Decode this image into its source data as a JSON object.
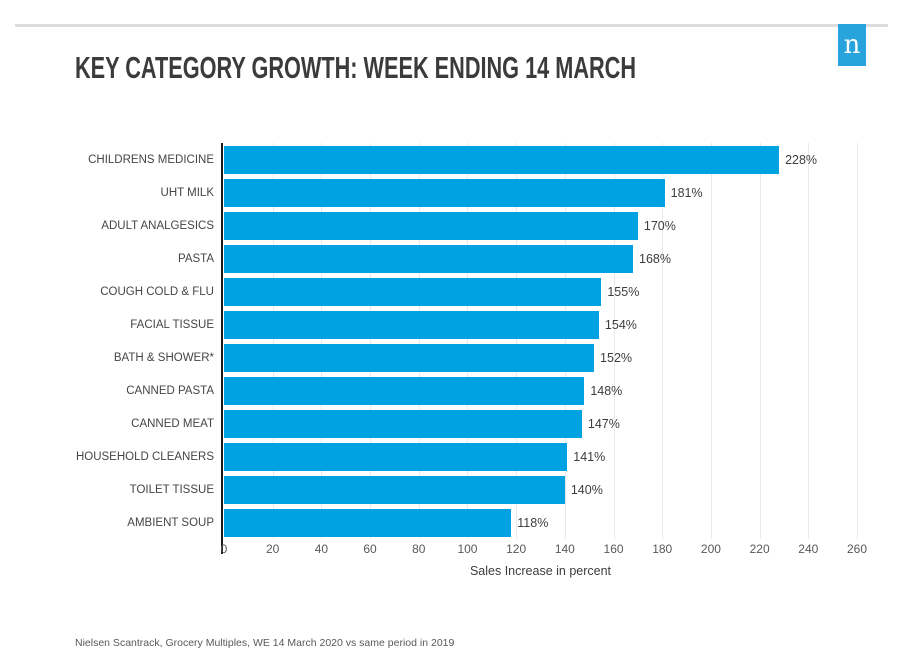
{
  "logo": {
    "letter": "n",
    "color": "#29a3db"
  },
  "title": "KEY CATEGORY GROWTH: WEEK ENDING 14 MARCH",
  "footer": "Nielsen Scantrack, Grocery Multiples, WE 14 March 2020 vs same period in 2019",
  "chart_data": {
    "type": "bar",
    "orientation": "horizontal",
    "title": "KEY CATEGORY GROWTH: WEEK ENDING 14 MARCH",
    "categories": [
      "CHILDRENS MEDICINE",
      "UHT MILK",
      "ADULT ANALGESICS",
      "PASTA",
      "COUGH COLD & FLU",
      "FACIAL TISSUE",
      "BATH & SHOWER*",
      "CANNED PASTA",
      "CANNED MEAT",
      "HOUSEHOLD CLEANERS",
      "TOILET TISSUE",
      "AMBIENT SOUP"
    ],
    "values": [
      228,
      181,
      170,
      168,
      155,
      154,
      152,
      148,
      147,
      141,
      140,
      118
    ],
    "value_labels": [
      "228%",
      "181%",
      "170%",
      "168%",
      "155%",
      "154%",
      "152%",
      "148%",
      "147%",
      "141%",
      "140%",
      "118%"
    ],
    "xlabel": "Sales Increase in percent",
    "ylabel": "",
    "xlim": [
      0,
      260
    ],
    "xticks": [
      0,
      20,
      40,
      60,
      80,
      100,
      120,
      140,
      160,
      180,
      200,
      220,
      240,
      260
    ],
    "grid": true,
    "legend": "none",
    "bar_color": "#00a2e1"
  }
}
